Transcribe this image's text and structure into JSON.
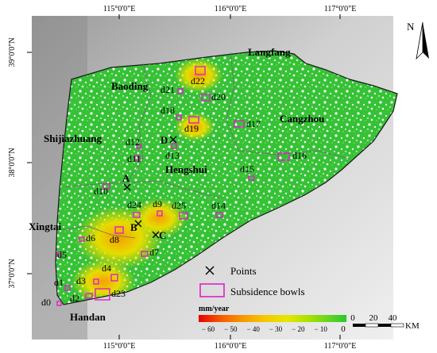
{
  "axes": {
    "top_ticks": [
      "115°0'0\"E",
      "116°0'0\"E",
      "117°0'0\"E"
    ],
    "bottom_ticks": [
      "115°0'0\"E",
      "116°0'0\"E",
      "117°0'0\"E"
    ],
    "left_ticks": [
      "39°0'0\"N",
      "38°0'0\"N",
      "37°0'0\"N"
    ]
  },
  "cities": [
    {
      "name": "Langfang"
    },
    {
      "name": "Baoding"
    },
    {
      "name": "Cangzhou"
    },
    {
      "name": "Shijiazhuang"
    },
    {
      "name": "Hengshui"
    },
    {
      "name": "Xingtai"
    },
    {
      "name": "Handan"
    }
  ],
  "points": [
    {
      "label": "A"
    },
    {
      "label": "B"
    },
    {
      "label": "C"
    },
    {
      "label": "D"
    }
  ],
  "bowls": [
    {
      "label": "d0"
    },
    {
      "label": "d1"
    },
    {
      "label": "d2"
    },
    {
      "label": "d3"
    },
    {
      "label": "d4"
    },
    {
      "label": "d5"
    },
    {
      "label": "d6"
    },
    {
      "label": "d7"
    },
    {
      "label": "d8"
    },
    {
      "label": "d9"
    },
    {
      "label": "d10"
    },
    {
      "label": "d11"
    },
    {
      "label": "d12"
    },
    {
      "label": "d13"
    },
    {
      "label": "d14"
    },
    {
      "label": "d15"
    },
    {
      "label": "d16"
    },
    {
      "label": "d17"
    },
    {
      "label": "d18"
    },
    {
      "label": "d19"
    },
    {
      "label": "d20"
    },
    {
      "label": "d21"
    },
    {
      "label": "d22"
    },
    {
      "label": "d23"
    },
    {
      "label": "d24"
    },
    {
      "label": "d25"
    }
  ],
  "legend": {
    "points_label": "Points",
    "bowls_label": "Subsidence bowls",
    "unit": "mm/year",
    "ticks": [
      "− 60",
      "− 50",
      "− 40",
      "− 30",
      "− 20",
      "− 10",
      "0"
    ],
    "colors": [
      "#e60000",
      "#f55a00",
      "#f59a00",
      "#f5c800",
      "#e6e600",
      "#a8e000",
      "#5ad22a",
      "#28c828"
    ]
  },
  "scalebar": {
    "ticks": [
      "0",
      "20",
      "40"
    ],
    "unit": "KM"
  },
  "north_arrow": {
    "letter": "N",
    "icon": "north-arrow-icon"
  }
}
